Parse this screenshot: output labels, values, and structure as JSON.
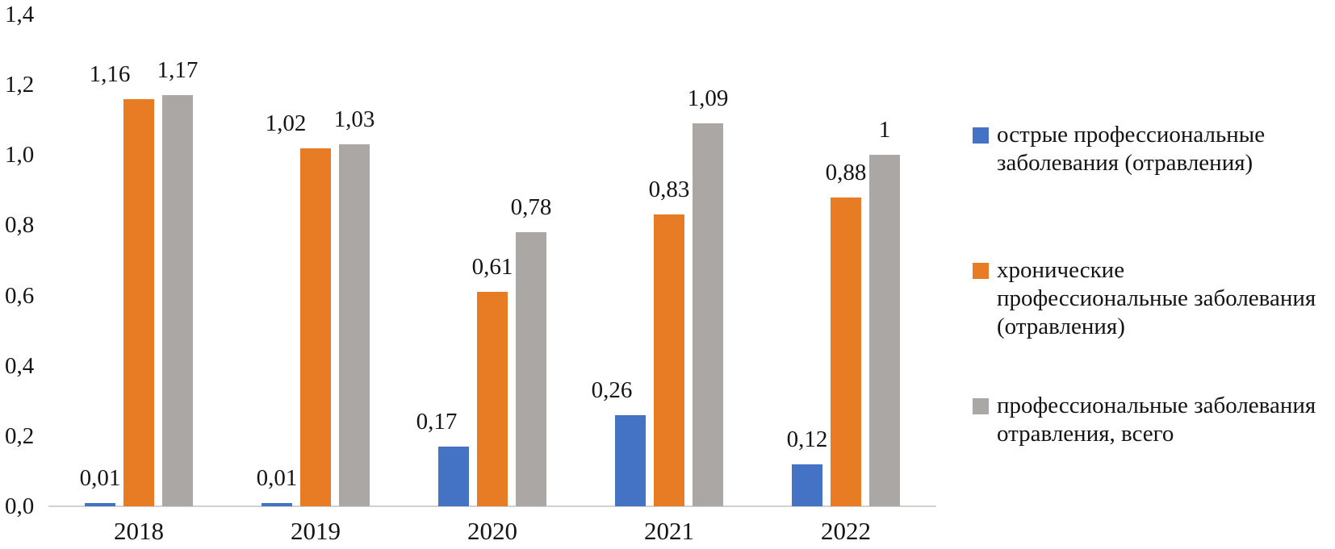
{
  "chart_data": {
    "type": "bar",
    "title": "",
    "categories": [
      "2018",
      "2019",
      "2020",
      "2021",
      "2022"
    ],
    "series": [
      {
        "name": "острые профессиональные заболевания (отравления)",
        "color": "#4472C4",
        "values": [
          0.01,
          0.01,
          0.17,
          0.26,
          0.12
        ],
        "labels": [
          "0,01",
          "0,01",
          "0,17",
          "0,26",
          "0,12"
        ]
      },
      {
        "name": "хронические профессиональные заболевания (отравления)",
        "color": "#E87C25",
        "values": [
          1.16,
          1.02,
          0.61,
          0.83,
          0.88
        ],
        "labels": [
          "1,16",
          "1,02",
          "0,61",
          "0,83",
          "0,88"
        ]
      },
      {
        "name": "профессиональные заболевания отравления, всего",
        "color": "#ABA7A5",
        "values": [
          1.17,
          1.03,
          0.78,
          1.09,
          1
        ],
        "labels": [
          "1,17",
          "1,03",
          "0,78",
          "1,09",
          "1"
        ]
      }
    ],
    "y_axis": {
      "min": 0,
      "max": 1.4,
      "step": 0.2,
      "tick_labels": [
        "0,0",
        "0,2",
        "0,4",
        "0,6",
        "0,8",
        "1,0",
        "1,2",
        "1,4"
      ]
    },
    "x_axis": {
      "tick_labels": [
        "2018",
        "2019",
        "2020",
        "2021",
        "2022"
      ]
    },
    "grid": false,
    "data_labels_shown": true,
    "decimal_separator": ",",
    "legend": {
      "position": "right",
      "entries": [
        {
          "color": "#4472C4",
          "lines": [
            "острые профессиональные",
            "заболевания (отравления)"
          ]
        },
        {
          "color": "#E87C25",
          "lines": [
            "хронические",
            "профессиональные заболевания",
            "(отравления)"
          ]
        },
        {
          "color": "#ABA7A5",
          "lines": [
            "профессиональные заболевания",
            "отравления, всего"
          ]
        }
      ]
    }
  }
}
